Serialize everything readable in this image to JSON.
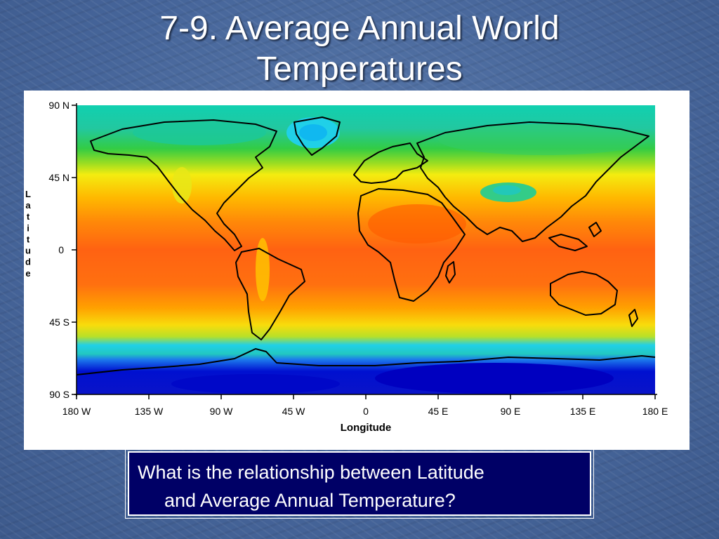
{
  "slide": {
    "title_line1": "7-9. Average Annual World",
    "title_line2": "Temperatures",
    "question_line1": "What is the relationship between Latitude",
    "question_line2": "and Average Annual Temperature?"
  },
  "map": {
    "y_axis_label": "Latitude",
    "x_axis_label": "Longitude",
    "y_ticks": [
      "90 N",
      "45 N",
      "0",
      "45 S",
      "90 S"
    ],
    "x_ticks": [
      "180 W",
      "135 W",
      "90 W",
      "45 W",
      "0",
      "45 E",
      "90 E",
      "135 E",
      "180 E"
    ],
    "legend": "none",
    "color_scale_order_cold_to_hot": [
      "#0000cc",
      "#0066ff",
      "#00ccff",
      "#00cc66",
      "#66dd33",
      "#ffee00",
      "#ffaa00",
      "#ff6600",
      "#ff5000"
    ],
    "zonal_pattern": [
      {
        "lat_from": 90,
        "lat_to": 75,
        "band": "cold",
        "color": "#00c8a0"
      },
      {
        "lat_from": 75,
        "lat_to": 60,
        "band": "cool",
        "color": "#2ec850"
      },
      {
        "lat_from": 60,
        "lat_to": 45,
        "band": "mild",
        "color": "#f0ea10"
      },
      {
        "lat_from": 45,
        "lat_to": 25,
        "band": "warm",
        "color": "#ffa000"
      },
      {
        "lat_from": 25,
        "lat_to": -25,
        "band": "hot",
        "color": "#ff6010"
      },
      {
        "lat_from": -25,
        "lat_to": -45,
        "band": "warm",
        "color": "#ffa000"
      },
      {
        "lat_from": -45,
        "lat_to": -55,
        "band": "mild",
        "color": "#e8e818"
      },
      {
        "lat_from": -55,
        "lat_to": -65,
        "band": "cool",
        "color": "#10c8e0"
      },
      {
        "lat_from": -65,
        "lat_to": -90,
        "band": "cold",
        "color": "#0010d0"
      }
    ]
  }
}
